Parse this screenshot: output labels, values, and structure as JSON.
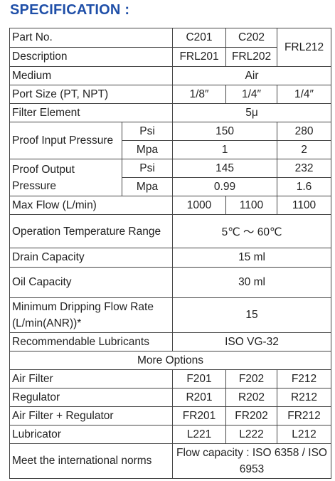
{
  "heading": "SPECIFICATION :",
  "rows": {
    "part_no": {
      "label": "Part No.",
      "v1": "C201",
      "v2": "C202",
      "frl212": "FRL212"
    },
    "description": {
      "label": "Description",
      "v1": "FRL201",
      "v2": "FRL202"
    },
    "medium": {
      "label": "Medium",
      "value": "Air"
    },
    "port_size": {
      "label": "Port Size (PT, NPT)",
      "v1": "1/8″",
      "v2": "1/4″",
      "v3": "1/4″"
    },
    "filter_element": {
      "label": "Filter Element",
      "value": "5μ"
    },
    "proof_input": {
      "label": "Proof Input Pressure",
      "unit1": "Psi",
      "v1": "150",
      "v3": "280",
      "unit2": "Mpa",
      "w1": "1",
      "w3": "2"
    },
    "proof_output": {
      "label": "Proof Output Pressure",
      "unit1": "Psi",
      "v1": "145",
      "v3": "232",
      "unit2": "Mpa",
      "w1": "0.99",
      "w3": "1.6"
    },
    "max_flow": {
      "label": "Max Flow (L/min)",
      "v1": "1000",
      "v2": "1100",
      "v3": "1100"
    },
    "operation_temp": {
      "label": "Operation Temperature Range",
      "value": "5℃ ～ 60℃"
    },
    "drain_capacity": {
      "label": "Drain Capacity",
      "value": "15 ml"
    },
    "oil_capacity": {
      "label": "Oil Capacity",
      "value": "30 ml"
    },
    "min_drip": {
      "label": "Minimum Dripping Flow Rate (L/min(ANR))*",
      "value": "15"
    },
    "lubricants": {
      "label": "Recommendable Lubricants",
      "value": "ISO VG-32"
    },
    "more_options": "More Options",
    "air_filter": {
      "label": "Air Filter",
      "v1": "F201",
      "v2": "F202",
      "v3": "F212"
    },
    "regulator": {
      "label": "Regulator",
      "v1": "R201",
      "v2": "R202",
      "v3": "R212"
    },
    "air_filter_regulator": {
      "label": "Air Filter + Regulator",
      "v1": "FR201",
      "v2": "FR202",
      "v3": "FR212"
    },
    "lubricator": {
      "label": "Lubricator",
      "v1": "L221",
      "v2": "L222",
      "v3": "L212"
    },
    "norms": {
      "label": "Meet the international norms",
      "value": "Flow capacity : ISO 6358 / ISO 6953"
    }
  }
}
